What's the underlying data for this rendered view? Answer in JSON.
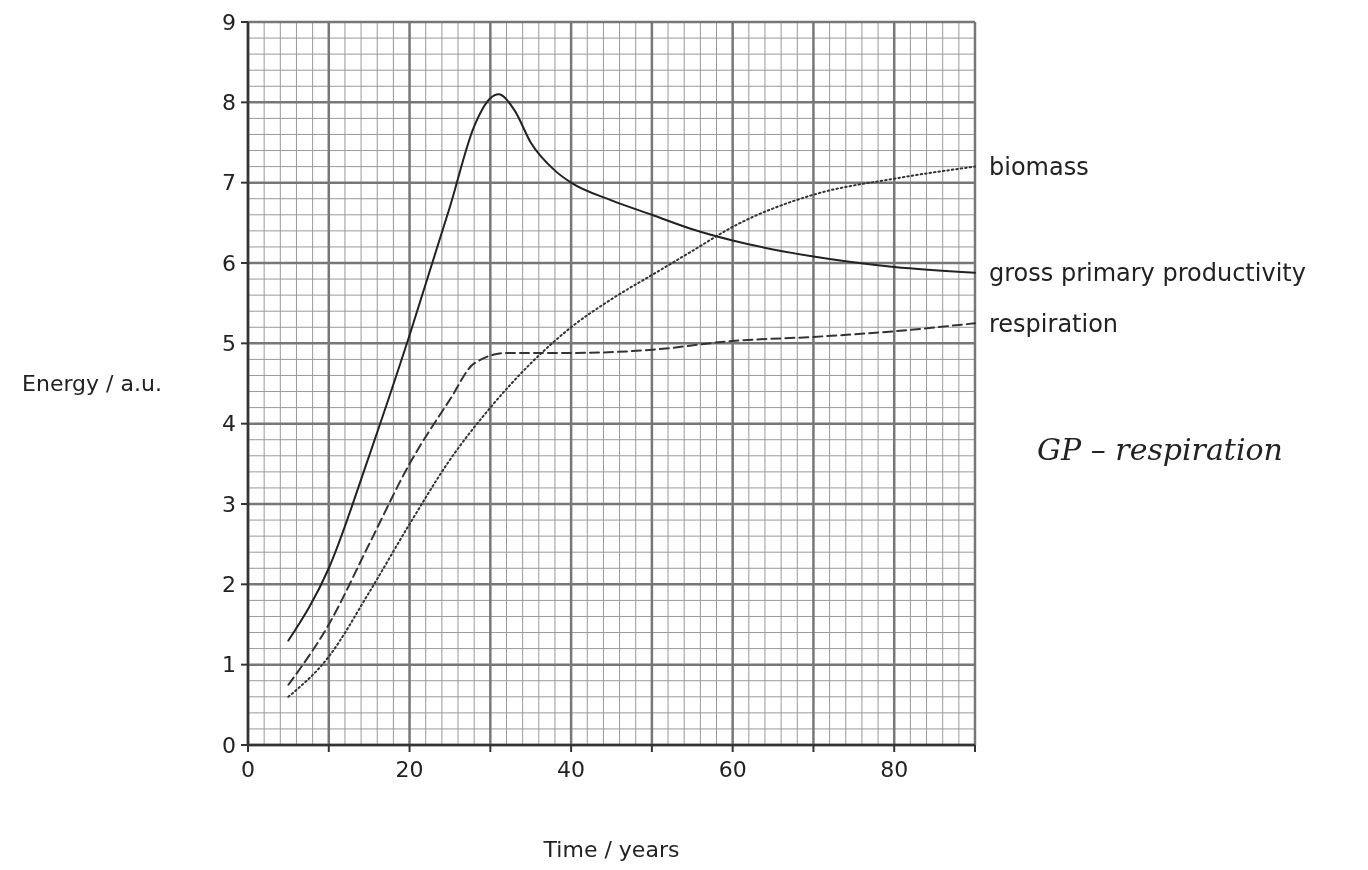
{
  "chart_data": {
    "type": "line",
    "xlabel": "Time / years",
    "ylabel": "Energy / a.u.",
    "xlim": [
      0,
      90
    ],
    "ylim": [
      0,
      9
    ],
    "xticks": [
      0,
      {
        "value": 10,
        "label": null
      },
      20,
      {
        "value": 30,
        "label": null
      },
      40,
      {
        "value": 50,
        "label": null
      },
      60,
      {
        "value": 70,
        "label": null
      },
      80,
      {
        "value": 90,
        "label": null
      }
    ],
    "yticks": [
      0,
      1,
      2,
      3,
      4,
      5,
      6,
      7,
      8,
      9
    ],
    "grid": true,
    "marker": "none",
    "series": [
      {
        "name": "biomass",
        "color": "#333333",
        "line_style": "dotted",
        "x": [
          5,
          10,
          15,
          20,
          25,
          30,
          35,
          40,
          45,
          50,
          55,
          60,
          70,
          80,
          90
        ],
        "values": [
          0.6,
          1.1,
          1.9,
          2.75,
          3.55,
          4.2,
          4.75,
          5.2,
          5.55,
          5.85,
          6.15,
          6.45,
          6.85,
          7.05,
          7.2
        ]
      },
      {
        "name": "gross primary productivity",
        "color": "#222222",
        "line_style": "solid",
        "x": [
          5,
          10,
          15,
          20,
          25,
          28,
          30,
          31,
          33,
          35,
          38,
          40,
          45,
          50,
          55,
          60,
          70,
          80,
          90
        ],
        "values": [
          1.3,
          2.2,
          3.6,
          5.1,
          6.7,
          7.7,
          8.05,
          8.1,
          7.9,
          7.5,
          7.15,
          7.0,
          6.78,
          6.6,
          6.42,
          6.28,
          6.08,
          5.95,
          5.88
        ]
      },
      {
        "name": "respiration",
        "color": "#333333",
        "line_style": "dashed",
        "x": [
          5,
          10,
          15,
          20,
          25,
          28,
          32,
          40,
          50,
          60,
          70,
          80,
          90
        ],
        "values": [
          0.75,
          1.5,
          2.5,
          3.5,
          4.3,
          4.75,
          4.88,
          4.88,
          4.92,
          5.03,
          5.08,
          5.15,
          5.25
        ]
      }
    ],
    "annotations": [
      "GP – respiration"
    ]
  }
}
